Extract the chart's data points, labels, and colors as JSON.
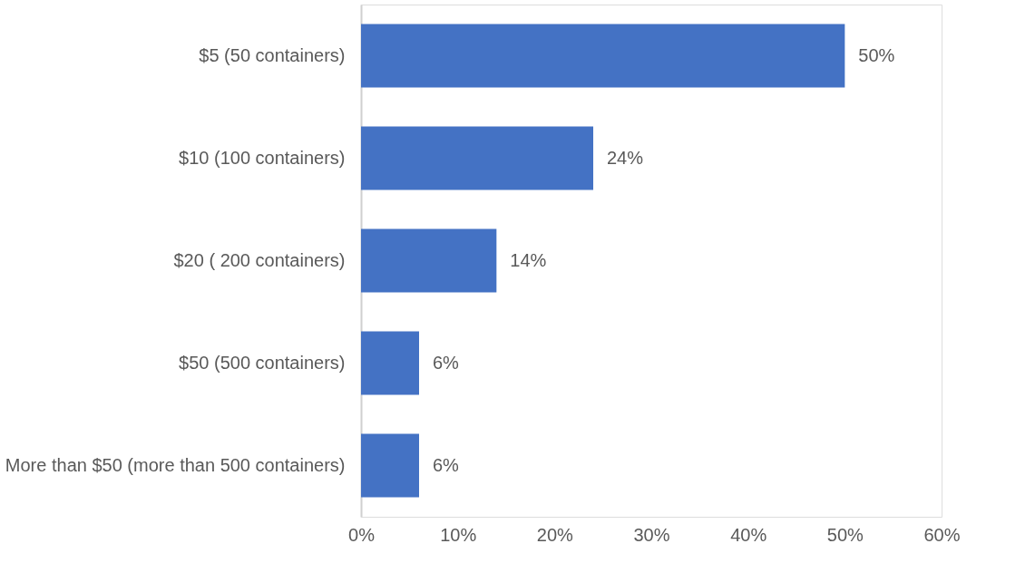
{
  "chart_data": {
    "type": "bar",
    "orientation": "horizontal",
    "categories": [
      "$5 (50 containers)",
      "$10 (100 containers)",
      "$20 ( 200 containers)",
      "$50 (500 containers)",
      "More than $50 (more than 500 containers)"
    ],
    "series": [
      {
        "color": "#4472c4",
        "values": [
          50,
          24,
          14,
          6,
          6
        ]
      }
    ],
    "value_labels": [
      "50%",
      "24%",
      "14%",
      "6%",
      "6%"
    ],
    "xlim": [
      0,
      60
    ],
    "xticks": [
      {
        "value": 0,
        "label": "0%"
      },
      {
        "value": 10,
        "label": "10%"
      },
      {
        "value": 20,
        "label": "20%"
      },
      {
        "value": 30,
        "label": "30%"
      },
      {
        "value": 40,
        "label": "40%"
      },
      {
        "value": 50,
        "label": "50%"
      },
      {
        "value": 60,
        "label": "60%"
      }
    ],
    "grid": false
  }
}
